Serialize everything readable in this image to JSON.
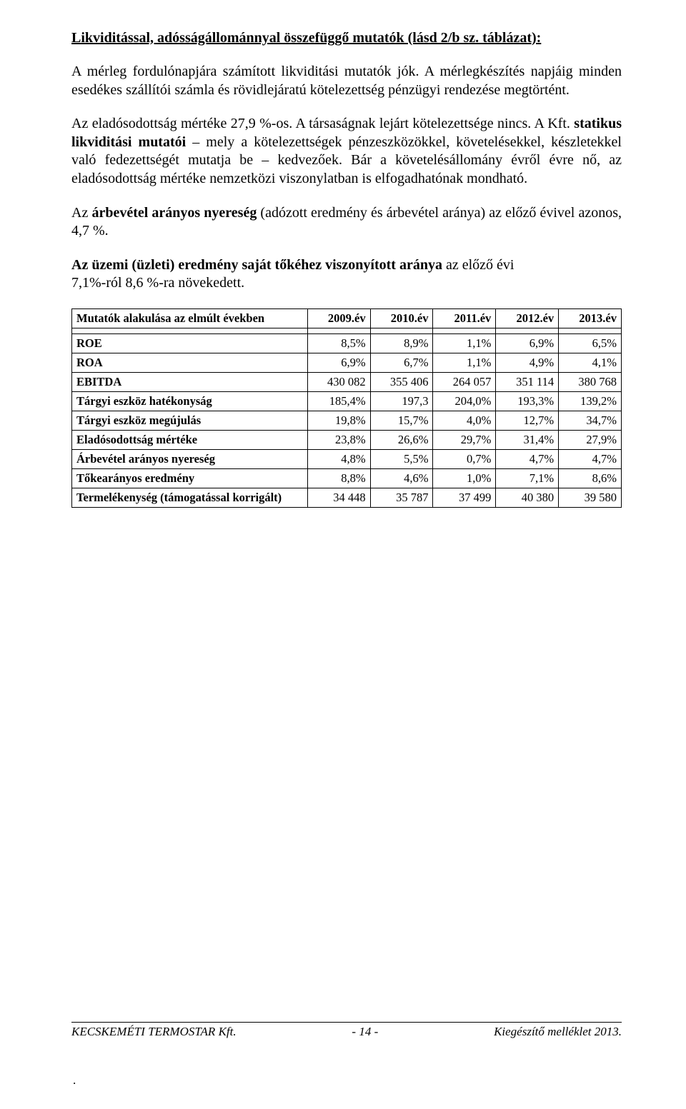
{
  "heading": "Likviditással, adósságállománnyal összefüggő mutatók (lásd 2/b sz. táblázat):",
  "p1": "A mérleg fordulónapjára számított likviditási mutatók jók. A mérlegkészítés napjáig minden esedékes szállítói számla és rövidlejáratú kötelezettség pénzügyi rendezése megtörtént.",
  "p2_before_bold": "Az eladósodottság mértéke 27,9 %-os. A társaságnak lejárt kötelezettsége nincs. A Kft. ",
  "p2_bold": "statikus likviditási mutatói",
  "p2_after_bold": " – mely a kötelezettségek pénzeszközökkel, követelésekkel, készletekkel való fedezettségét mutatja be – kedvezőek. Bár a követelésállomány évről évre nő, az eladósodottság mértéke nemzetközi viszonylatban is elfogadhatónak mondható.",
  "p3_a": "Az ",
  "p3_bold": "árbevétel arányos nyereség",
  "p3_b": " (adózott eredmény és árbevétel aránya) az előző évivel azonos, 4,7 %.",
  "p4_bold": "Az üzemi (üzleti) eredmény saját tőkéhez viszonyított aránya",
  "p4_rest": " az előző évi",
  "p4_line2": "7,1%-ról 8,6 %-ra növekedett.",
  "table": {
    "header_label": "Mutatók alakulása az elmúlt években",
    "years": [
      "2009.év",
      "2010.év",
      "2011.év",
      "2012.év",
      "2013.év"
    ],
    "rows": [
      {
        "label": "ROE",
        "vals": [
          "8,5%",
          "8,9%",
          "1,1%",
          "6,9%",
          "6,5%"
        ]
      },
      {
        "label": "ROA",
        "vals": [
          "6,9%",
          "6,7%",
          "1,1%",
          "4,9%",
          "4,1%"
        ]
      },
      {
        "label": "EBITDA",
        "vals": [
          "430 082",
          "355 406",
          "264 057",
          "351 114",
          "380 768"
        ]
      },
      {
        "label": "Tárgyi eszköz hatékonyság",
        "vals": [
          "185,4%",
          "197,3",
          "204,0%",
          "193,3%",
          "139,2%"
        ]
      },
      {
        "label": "Tárgyi eszköz megújulás",
        "vals": [
          "19,8%",
          "15,7%",
          "4,0%",
          "12,7%",
          "34,7%"
        ]
      },
      {
        "label": "Eladósodottság mértéke",
        "vals": [
          "23,8%",
          "26,6%",
          "29,7%",
          "31,4%",
          "27,9%"
        ]
      },
      {
        "label": "Árbevétel arányos nyereség",
        "vals": [
          "4,8%",
          "5,5%",
          "0,7%",
          "4,7%",
          "4,7%"
        ]
      },
      {
        "label": "Tőkearányos eredmény",
        "vals": [
          "8,8%",
          "4,6%",
          "1,0%",
          "7,1%",
          "8,6%"
        ]
      },
      {
        "label": "Termelékenység (támogatással korrigált)",
        "vals": [
          "34 448",
          "35 787",
          "37 499",
          "40 380",
          "39 580"
        ]
      }
    ]
  },
  "footer": {
    "left": "KECSKEMÉTI TERMOSTAR Kft.",
    "center": "- 14 -",
    "right": "Kiegészítő melléklet 2013."
  },
  "dot": "."
}
